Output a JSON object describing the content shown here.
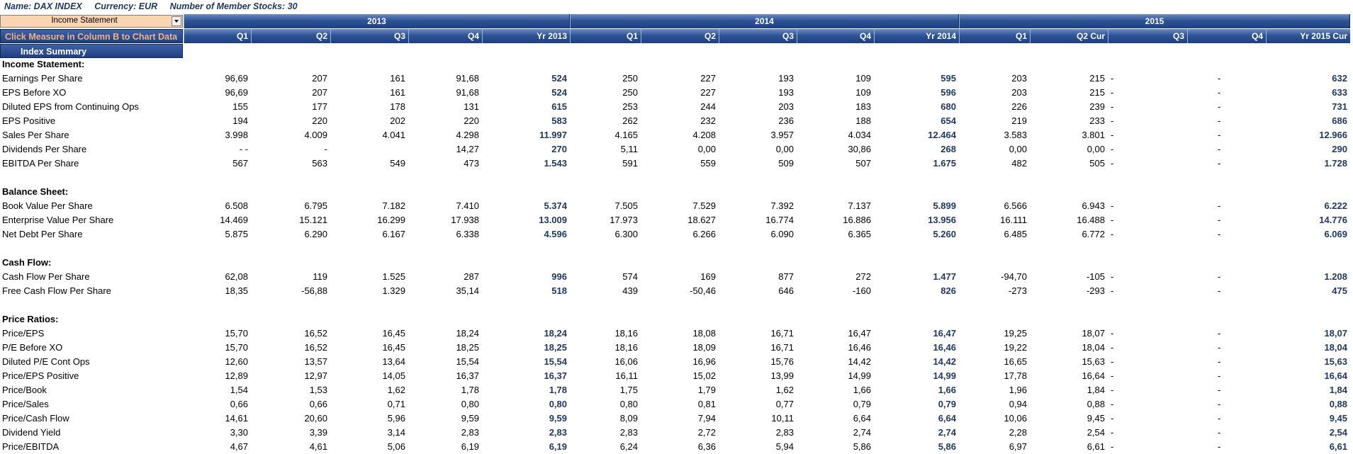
{
  "info": {
    "name": "Name: DAX INDEX",
    "currency": "Currency: EUR",
    "members": "Number of Member Stocks: 30"
  },
  "selector": {
    "value": "Income Statement"
  },
  "buttons": {
    "chart": "Click Measure in Column B to Chart Data",
    "summary": "Index Summary"
  },
  "years": [
    "2013",
    "2014",
    "2015"
  ],
  "columns": [
    "Q1",
    "Q2",
    "Q3",
    "Q4",
    "Yr 2013",
    "Q1",
    "Q2",
    "Q3",
    "Q4",
    "Yr 2014",
    "Q1",
    "Q2 Cur",
    "Q3",
    "Q4",
    "Yr 2015 Cur"
  ],
  "sections": [
    {
      "title": "Income Statement:",
      "rows": [
        {
          "label": "Earnings Per Share",
          "values": [
            "96,69",
            "207",
            "161",
            "91,68",
            "524",
            "250",
            "227",
            "193",
            "109",
            "595",
            "203",
            "215",
            "-",
            "-",
            "632"
          ]
        },
        {
          "label": "EPS Before XO",
          "values": [
            "96,69",
            "207",
            "161",
            "91,68",
            "524",
            "250",
            "227",
            "193",
            "109",
            "596",
            "203",
            "215",
            "-",
            "-",
            "633"
          ]
        },
        {
          "label": "Diluted EPS from Continuing Ops",
          "values": [
            "155",
            "177",
            "178",
            "131",
            "615",
            "253",
            "244",
            "203",
            "183",
            "680",
            "226",
            "239",
            "-",
            "-",
            "731"
          ]
        },
        {
          "label": "EPS Positive",
          "values": [
            "194",
            "220",
            "202",
            "220",
            "583",
            "262",
            "232",
            "236",
            "188",
            "654",
            "219",
            "233",
            "-",
            "-",
            "686"
          ]
        },
        {
          "label": "Sales Per Share",
          "values": [
            "3.998",
            "4.009",
            "4.041",
            "4.298",
            "11.997",
            "4.165",
            "4.208",
            "3.957",
            "4.034",
            "12.464",
            "3.583",
            "3.801",
            "-",
            "-",
            "12.966"
          ]
        },
        {
          "label": "Dividends Per Share",
          "values": [
            "- -",
            "-",
            "",
            "14,27",
            "270",
            "5,11",
            "0,00",
            "0,00",
            "30,86",
            "268",
            "0,00",
            "0,00",
            "-",
            "-",
            "290"
          ]
        },
        {
          "label": "EBITDA Per Share",
          "values": [
            "567",
            "563",
            "549",
            "473",
            "1.543",
            "591",
            "559",
            "509",
            "507",
            "1.675",
            "482",
            "505",
            "-",
            "-",
            "1.728"
          ]
        }
      ]
    },
    {
      "title": "Balance Sheet:",
      "rows": [
        {
          "label": "Book Value Per Share",
          "values": [
            "6.508",
            "6.795",
            "7.182",
            "7.410",
            "5.374",
            "7.505",
            "7.529",
            "7.392",
            "7.137",
            "5.899",
            "6.566",
            "6.943",
            "-",
            "-",
            "6.222"
          ]
        },
        {
          "label": "Enterprise Value Per Share",
          "values": [
            "14.469",
            "15.121",
            "16.299",
            "17.938",
            "13.009",
            "17.973",
            "18.627",
            "16.774",
            "16.886",
            "13.956",
            "16.111",
            "16.488",
            "-",
            "-",
            "14.776"
          ]
        },
        {
          "label": "Net Debt Per Share",
          "values": [
            "5.875",
            "6.290",
            "6.167",
            "6.338",
            "4.596",
            "6.300",
            "6.266",
            "6.090",
            "6.365",
            "5.260",
            "6.485",
            "6.772",
            "-",
            "-",
            "6.069"
          ]
        }
      ]
    },
    {
      "title": "Cash Flow:",
      "rows": [
        {
          "label": "Cash Flow Per Share",
          "values": [
            "62,08",
            "119",
            "1.525",
            "287",
            "996",
            "574",
            "169",
            "877",
            "272",
            "1.477",
            "-94,70",
            "-105",
            "-",
            "-",
            "1.208"
          ]
        },
        {
          "label": "Free Cash Flow Per Share",
          "values": [
            "18,35",
            "-56,88",
            "1.329",
            "35,14",
            "518",
            "439",
            "-50,46",
            "646",
            "-160",
            "826",
            "-273",
            "-293",
            "-",
            "-",
            "475"
          ]
        }
      ]
    },
    {
      "title": "Price Ratios:",
      "rows": [
        {
          "label": "Price/EPS",
          "values": [
            "15,70",
            "16,52",
            "16,45",
            "18,24",
            "18,24",
            "18,16",
            "18,08",
            "16,71",
            "16,47",
            "16,47",
            "19,25",
            "18,07",
            "-",
            "-",
            "18,07"
          ]
        },
        {
          "label": "P/E Before XO",
          "values": [
            "15,70",
            "16,52",
            "16,45",
            "18,25",
            "18,25",
            "18,16",
            "18,09",
            "16,71",
            "16,46",
            "16,46",
            "19,22",
            "18,04",
            "-",
            "-",
            "18,04"
          ]
        },
        {
          "label": "Diluted P/E Cont Ops",
          "values": [
            "12,60",
            "13,57",
            "13,64",
            "15,54",
            "15,54",
            "16,06",
            "16,96",
            "15,76",
            "14,42",
            "14,42",
            "16,65",
            "15,63",
            "-",
            "-",
            "15,63"
          ]
        },
        {
          "label": "Price/EPS Positive",
          "values": [
            "12,89",
            "12,97",
            "14,05",
            "16,37",
            "16,37",
            "16,11",
            "15,02",
            "13,99",
            "14,99",
            "14,99",
            "17,78",
            "16,64",
            "-",
            "-",
            "16,64"
          ]
        },
        {
          "label": "Price/Book",
          "values": [
            "1,54",
            "1,53",
            "1,62",
            "1,78",
            "1,78",
            "1,75",
            "1,79",
            "1,62",
            "1,66",
            "1,66",
            "1,96",
            "1,84",
            "-",
            "-",
            "1,84"
          ]
        },
        {
          "label": "Price/Sales",
          "values": [
            "0,66",
            "0,66",
            "0,71",
            "0,80",
            "0,80",
            "0,80",
            "0,81",
            "0,77",
            "0,79",
            "0,79",
            "0,94",
            "0,88",
            "-",
            "-",
            "0,88"
          ]
        },
        {
          "label": "Price/Cash Flow",
          "values": [
            "14,61",
            "20,60",
            "5,96",
            "9,59",
            "9,59",
            "8,09",
            "7,94",
            "10,11",
            "6,64",
            "6,64",
            "10,06",
            "9,45",
            "-",
            "-",
            "9,45"
          ]
        },
        {
          "label": "Dividend Yield",
          "values": [
            "3,30",
            "3,39",
            "3,14",
            "2,83",
            "2,83",
            "2,83",
            "2,72",
            "2,83",
            "2,74",
            "2,74",
            "2,28",
            "2,54",
            "-",
            "-",
            "2,54"
          ]
        },
        {
          "label": "Price/EBITDA",
          "values": [
            "4,67",
            "4,61",
            "5,06",
            "6,19",
            "6,19",
            "6,24",
            "6,36",
            "5,94",
            "5,86",
            "5,86",
            "6,97",
            "6,61",
            "-",
            "-",
            "6,61"
          ]
        }
      ]
    }
  ]
}
